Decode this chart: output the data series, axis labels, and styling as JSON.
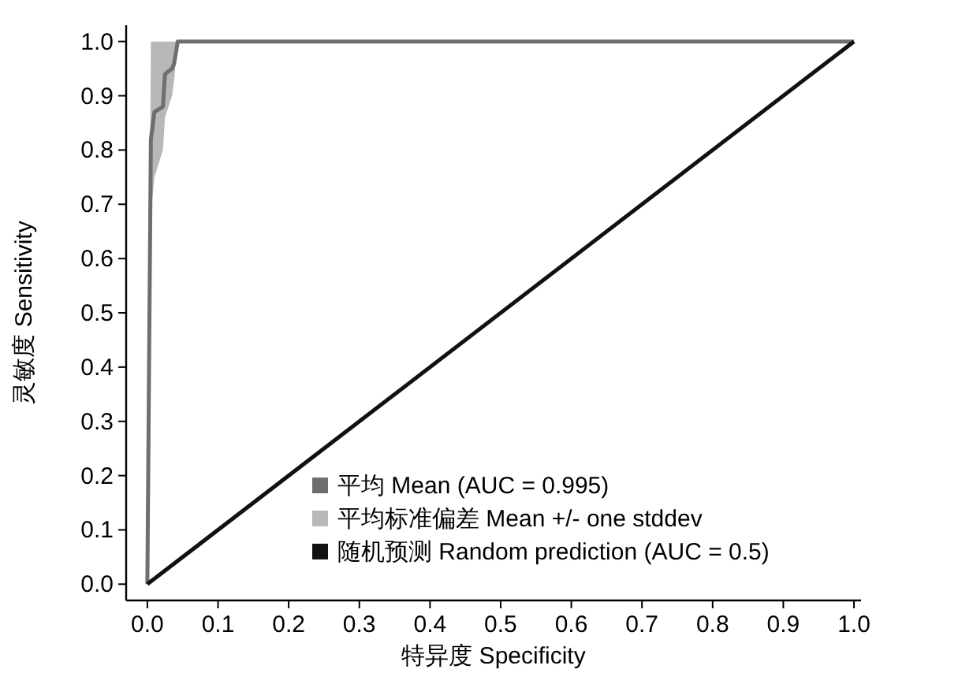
{
  "chart_data": {
    "type": "line",
    "xlabel": "特异度 Specificity",
    "ylabel": "灵敏度 Sensitivity",
    "xlim": [
      -0.03,
      1.01
    ],
    "ylim": [
      -0.03,
      1.03
    ],
    "xticks": [
      {
        "value": 0,
        "label": "0.0"
      },
      0.1,
      0.2,
      0.3,
      0.4,
      0.5,
      0.6,
      0.7,
      0.8,
      0.9,
      {
        "value": 1,
        "label": "1.0"
      }
    ],
    "yticks": [
      {
        "value": 0,
        "label": "0.0"
      },
      0.1,
      0.2,
      0.3,
      0.4,
      0.5,
      0.6,
      0.7,
      0.8,
      0.9,
      {
        "value": 1,
        "label": "1.0"
      }
    ],
    "grid": false,
    "legend": "bottom right",
    "marker": "none",
    "line_style": "solid",
    "series": [
      {
        "name": "平均  Mean (AUC = 0.995)",
        "color": "#6e6e6e",
        "x": [
          0,
          0.003,
          0.005,
          0.01,
          0.022,
          0.025,
          0.035,
          0.038,
          0.043,
          1
        ],
        "values": [
          0,
          0.5,
          0.82,
          0.87,
          0.88,
          0.94,
          0.95,
          0.96,
          1,
          1
        ]
      },
      {
        "name": "平均标准偏差  Mean +/- one stddev",
        "type": "area",
        "color": "#b8b8b8",
        "x": [
          0,
          0.003,
          0.005,
          0.01,
          0.022,
          0.025,
          0.035,
          0.038,
          0.043,
          1
        ],
        "values": [
          null,
          null,
          null,
          null,
          null,
          null,
          null,
          null,
          null,
          null
        ],
        "lower": [
          0,
          0.4,
          0.68,
          0.75,
          0.8,
          0.86,
          0.9,
          0.93,
          1,
          1
        ],
        "upper": [
          0,
          0.6,
          1,
          1,
          1,
          1,
          1,
          1,
          1,
          1
        ]
      },
      {
        "name": "随机预测  Random prediction (AUC = 0.5)",
        "color": "#111111",
        "x": [
          0,
          1
        ],
        "values": [
          0,
          1
        ]
      }
    ]
  }
}
